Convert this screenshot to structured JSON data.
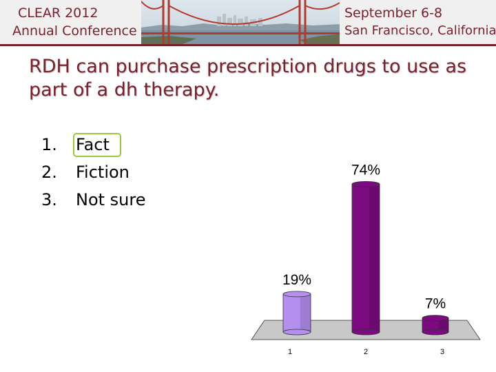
{
  "header": {
    "conference_line1": "CLEAR 2012",
    "conference_line2": "Annual Conference",
    "date_line1": "September 6-8",
    "date_line2": "San Francisco, California"
  },
  "slide": {
    "title": "RDH can purchase prescription drugs to use as part of a dh therapy.",
    "options": [
      {
        "number": "1.",
        "label": "Fact"
      },
      {
        "number": "2.",
        "label": "Fiction"
      },
      {
        "number": "3.",
        "label": "Not sure"
      }
    ],
    "highlighted_option": "Fact"
  },
  "colors": {
    "brand": "#7a1f2b",
    "bar_light": "#b58ff0",
    "bar_dark": "#7c0a80",
    "highlight": "#9cc93c"
  },
  "chart_data": {
    "type": "bar",
    "categories": [
      "1",
      "2",
      "3"
    ],
    "values": [
      19,
      74,
      7
    ],
    "data_labels": [
      "19%",
      "74%",
      "7%"
    ],
    "ylim": [
      0,
      100
    ],
    "grid": false
  }
}
